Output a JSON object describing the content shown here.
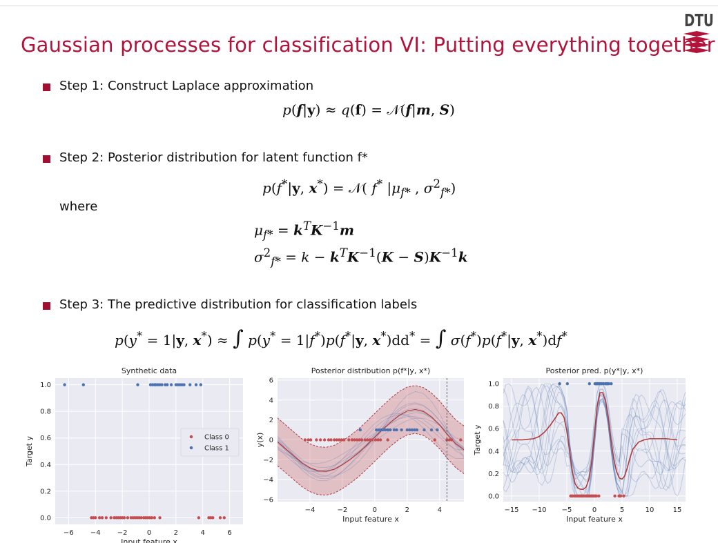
{
  "slide": {
    "title": "Gaussian processes for classification VI: Putting everything together",
    "logo_text": "DTU",
    "step1": "Step 1: Construct Laplace approximation",
    "step2": "Step 2: Posterior distribution for latent function f*",
    "where": "where",
    "step3": "Step 3: The predictive distribution for classification labels",
    "eq1": "p(f|y) ≈ q(f) = N(f|m, S)",
    "eq2": "p(f*|y, x*) = N( f* |μf*, σ²f*)",
    "eq3": "μf* = kᵀK⁻¹m",
    "eq4": "σ²f* = k − kᵀK⁻¹(K − S)K⁻¹k",
    "eq5": "p(y* = 1|y, x*) ≈ ∫ p(y* = 1|f*)p(f*|y, x*)df* = ∫ σ(f*)p(f*|y, x*)df*"
  },
  "colors": {
    "accent": "#b3133a",
    "class0": "#c44e52",
    "class1": "#4c72b0",
    "plot_bg": "#eaeaf2"
  },
  "chart_data": [
    {
      "type": "scatter",
      "title": "Synthetic data",
      "xlabel": "Input feature x",
      "ylabel": "Target y",
      "xlim": [
        -7,
        7
      ],
      "ylim": [
        -0.05,
        1.05
      ],
      "xticks": [
        -6,
        -4,
        -2,
        0,
        2,
        4,
        6
      ],
      "yticks": [
        0.0,
        0.2,
        0.4,
        0.6,
        0.8,
        1.0
      ],
      "legend_position": "right",
      "series": [
        {
          "name": "Class 0",
          "x": [
            -4.3,
            -4.15,
            -4.0,
            -3.7,
            -3.5,
            -3.2,
            -2.85,
            -2.6,
            -2.45,
            -2.3,
            -2.15,
            -2.0,
            -1.85,
            -1.6,
            -1.35,
            -1.2,
            -1.05,
            -0.9,
            -0.75,
            -0.6,
            -0.4,
            -0.25,
            -0.1,
            0.05,
            0.2,
            0.4,
            0.8,
            3.7,
            4.45,
            4.6,
            4.75,
            5.3,
            5.6
          ],
          "y": [
            0,
            0,
            0,
            0,
            0,
            0,
            0,
            0,
            0,
            0,
            0,
            0,
            0,
            0,
            0,
            0,
            0,
            0,
            0,
            0,
            0,
            0,
            0,
            0,
            0,
            0,
            0,
            0,
            0,
            0,
            0,
            0,
            0
          ]
        },
        {
          "name": "Class 1",
          "x": [
            -6.3,
            -4.9,
            -0.85,
            0.1,
            0.25,
            0.4,
            0.5,
            0.65,
            0.8,
            0.95,
            1.2,
            1.35,
            1.65,
            2.0,
            2.15,
            2.3,
            2.45,
            2.6,
            3.05,
            3.5,
            3.85
          ],
          "y": [
            1,
            1,
            1,
            1,
            1,
            1,
            1,
            1,
            1,
            1,
            1,
            1,
            1,
            1,
            1,
            1,
            1,
            1,
            1,
            1,
            1
          ]
        }
      ]
    },
    {
      "type": "line",
      "title": "Posterior distribution p(f*|y, x*)",
      "xlabel": "Input feature x",
      "ylabel": "y(x)",
      "xlim": [
        -6,
        5.5
      ],
      "ylim": [
        -6.2,
        6.2
      ],
      "xticks": [
        -4,
        -2,
        0,
        2,
        4
      ],
      "yticks": [
        -6,
        -4,
        -2,
        0,
        2,
        4,
        6
      ],
      "vline_x": 4.45,
      "mean": {
        "x": [
          -6,
          -5.5,
          -5,
          -4.5,
          -4,
          -3.5,
          -3,
          -2.5,
          -2,
          -1.5,
          -1,
          -0.5,
          0,
          0.5,
          1,
          1.5,
          2,
          2.5,
          3,
          3.5,
          4,
          4.5,
          5,
          5.5
        ],
        "y": [
          -0.2,
          -0.9,
          -1.6,
          -2.3,
          -2.8,
          -3.1,
          -3.15,
          -2.95,
          -2.5,
          -1.95,
          -1.3,
          -0.55,
          0.25,
          1.05,
          1.8,
          2.45,
          2.9,
          3.05,
          2.85,
          2.3,
          1.5,
          0.5,
          -0.4,
          -1.0
        ]
      },
      "band_halfwidth": 2.4,
      "series": [
        {
          "name": "Class 0",
          "x": [
            -4.3,
            -4.1,
            -3.95,
            -3.6,
            -3.35,
            -3.1,
            -2.85,
            -2.7,
            -2.5,
            -2.35,
            -2.2,
            -2.05,
            -1.9,
            -1.6,
            -1.4,
            -1.25,
            -1.1,
            -0.95,
            -0.8,
            -0.6,
            -0.45,
            -0.3,
            -0.15,
            0.05,
            0.2,
            0.35,
            0.8,
            3.7,
            4.45,
            4.6,
            4.75,
            5.3
          ],
          "y": [
            0,
            0,
            0,
            0,
            0,
            0,
            0,
            0,
            0,
            0,
            0,
            0,
            0,
            0,
            0,
            0,
            0,
            0,
            0,
            0,
            0,
            0,
            0,
            0,
            0,
            0,
            0,
            0,
            0,
            0,
            0,
            0
          ]
        },
        {
          "name": "Class 1",
          "x": [
            -0.9,
            0.1,
            0.25,
            0.4,
            0.5,
            0.65,
            0.8,
            0.95,
            1.2,
            1.35,
            1.65,
            2.0,
            2.15,
            2.3,
            2.45,
            2.6,
            3.05,
            3.5,
            3.85
          ],
          "y": [
            1,
            1,
            1,
            1,
            1,
            1,
            1,
            1,
            1,
            1,
            1,
            1,
            1,
            1,
            1,
            1,
            1,
            1,
            1
          ]
        }
      ]
    },
    {
      "type": "line",
      "title": "Posterior pred. p(y*|y, x*)",
      "xlabel": "Input feature x",
      "ylabel": "Target y",
      "xlim": [
        -16.5,
        16.5
      ],
      "ylim": [
        -0.05,
        1.05
      ],
      "xticks": [
        -15,
        -10,
        -5,
        0,
        5,
        10,
        15
      ],
      "yticks": [
        0.0,
        0.2,
        0.4,
        0.6,
        0.8,
        1.0
      ],
      "mean": {
        "x": [
          -15,
          -13,
          -11,
          -10,
          -9,
          -8,
          -7,
          -6.5,
          -6,
          -5.5,
          -5,
          -4.5,
          -4,
          -3.5,
          -3,
          -2.5,
          -2,
          -1.5,
          -1,
          -0.5,
          0,
          0.5,
          1,
          1.5,
          2,
          2.5,
          3,
          3.5,
          4,
          4.5,
          5,
          5.5,
          6,
          6.5,
          7,
          8,
          9,
          10,
          11,
          12,
          13,
          15
        ],
        "y": [
          0.5,
          0.5,
          0.51,
          0.53,
          0.57,
          0.63,
          0.7,
          0.74,
          0.74,
          0.7,
          0.58,
          0.4,
          0.22,
          0.11,
          0.07,
          0.06,
          0.06,
          0.08,
          0.15,
          0.3,
          0.55,
          0.8,
          0.92,
          0.92,
          0.85,
          0.7,
          0.5,
          0.33,
          0.22,
          0.16,
          0.15,
          0.18,
          0.26,
          0.35,
          0.42,
          0.48,
          0.5,
          0.51,
          0.51,
          0.51,
          0.51,
          0.5
        ]
      },
      "series": [
        {
          "name": "Class 0",
          "x": [
            -4.3,
            -4.1,
            -3.95,
            -3.6,
            -3.35,
            -3.1,
            -2.85,
            -2.7,
            -2.5,
            -2.35,
            -2.2,
            -2.05,
            -1.9,
            -1.6,
            -1.4,
            -1.25,
            -1.1,
            -0.95,
            -0.8,
            -0.6,
            -0.45,
            -0.3,
            -0.15,
            0.05,
            0.2,
            0.35,
            0.8,
            3.7,
            4.45,
            4.6,
            4.75,
            5.3
          ],
          "y": [
            0,
            0,
            0,
            0,
            0,
            0,
            0,
            0,
            0,
            0,
            0,
            0,
            0,
            0,
            0,
            0,
            0,
            0,
            0,
            0,
            0,
            0,
            0,
            0,
            0,
            0,
            0,
            0,
            0,
            0,
            0,
            0
          ]
        },
        {
          "name": "Class 1",
          "x": [
            -6.3,
            -4.9,
            -0.9,
            0.1,
            0.25,
            0.4,
            0.5,
            0.65,
            0.8,
            0.95,
            1.2,
            1.35,
            1.65,
            2.0,
            2.15,
            2.3,
            2.45,
            2.6,
            3.05
          ],
          "y": [
            1,
            1,
            1,
            1,
            1,
            1,
            1,
            1,
            1,
            1,
            1,
            1,
            1,
            1,
            1,
            1,
            1,
            1,
            1
          ]
        }
      ]
    }
  ]
}
